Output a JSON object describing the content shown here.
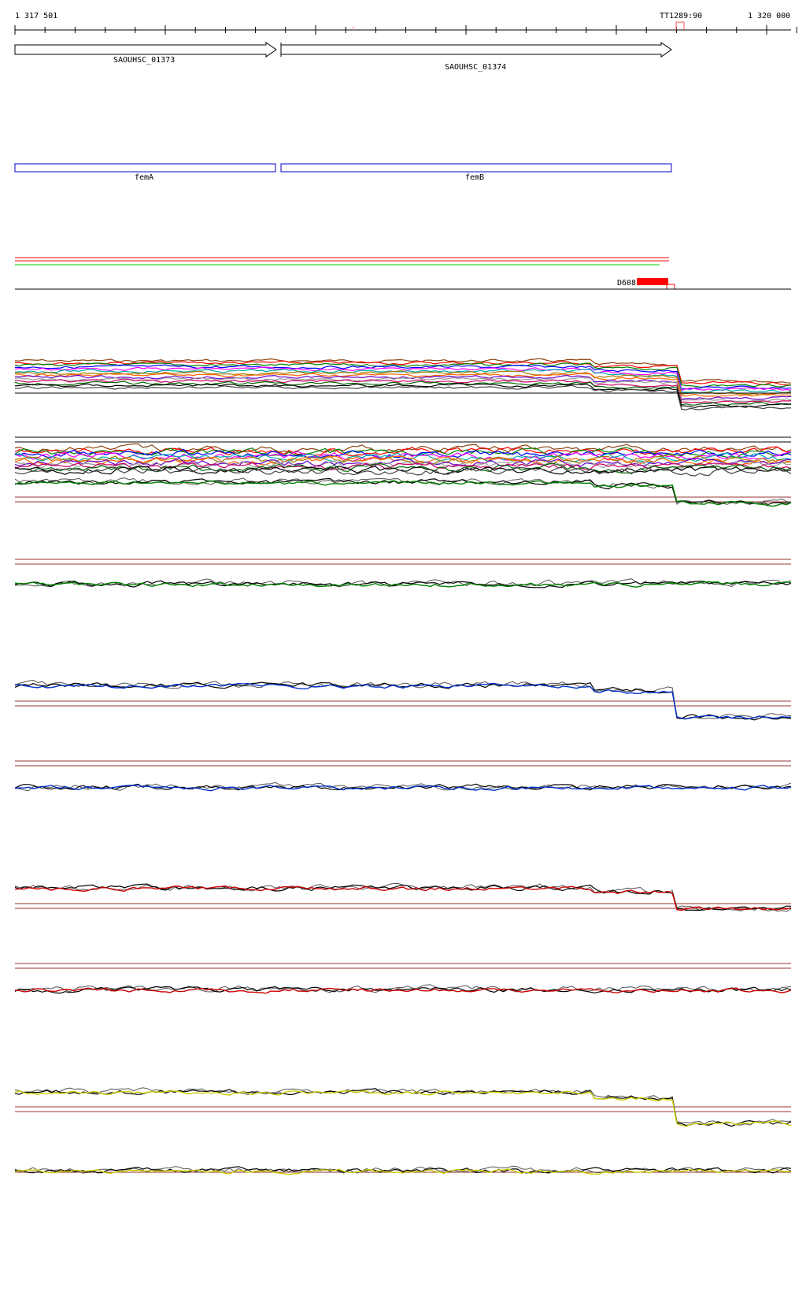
{
  "ruler": {
    "start_label": "1 317 501",
    "end_label": "1 320 000",
    "marker_label": "TT1289:90"
  },
  "genes": [
    {
      "label": "SAOUHSC_01373",
      "strand": "+"
    },
    {
      "label": "SAOUHSC_01374",
      "strand": "+"
    }
  ],
  "gene_names": [
    {
      "label": "femA"
    },
    {
      "label": "femB"
    }
  ],
  "transcripts": {
    "colors": [
      "#ff0000",
      "#ff0000",
      "#00cc00"
    ]
  },
  "feature": {
    "label": "D608",
    "color": "#ff0000"
  },
  "tracks": {
    "colors": {
      "green": "#008000",
      "blue": "#0033cc",
      "red": "#cc0000",
      "yellow": "#cccc00",
      "gray": "#555555",
      "black": "#000000",
      "threshold": "#993333"
    }
  }
}
